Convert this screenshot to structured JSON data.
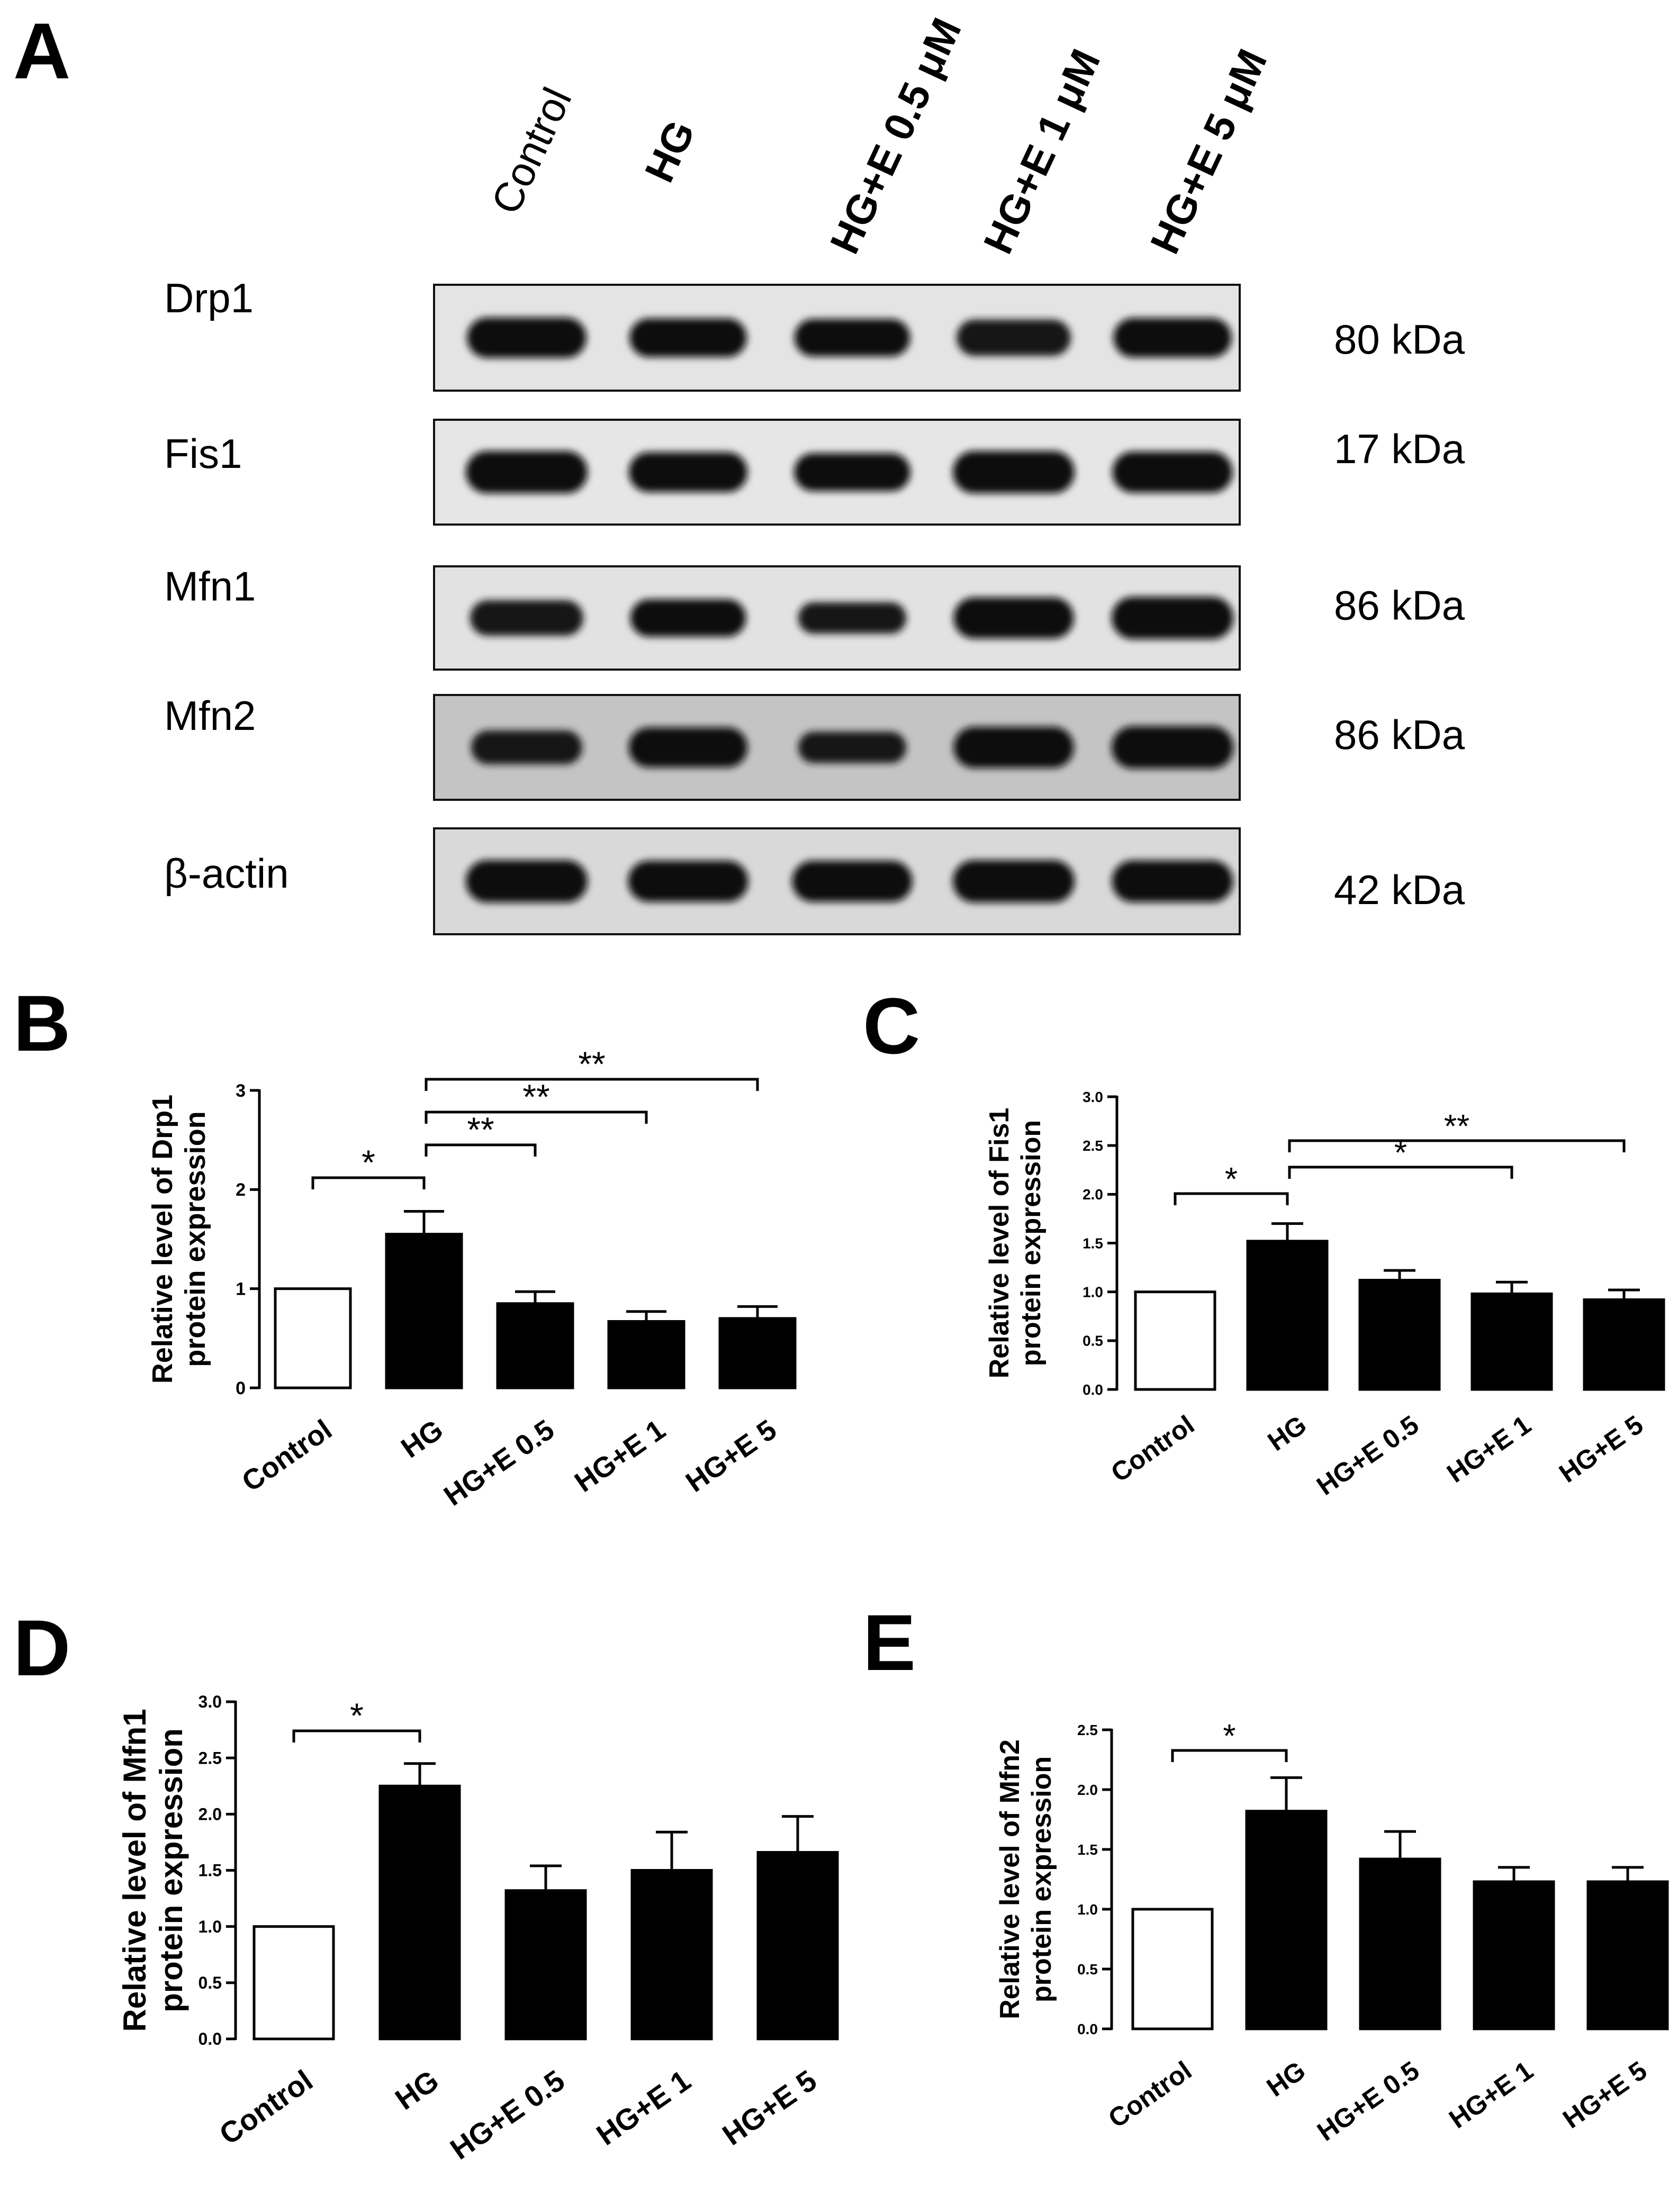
{
  "panel_letters": [
    "A",
    "B",
    "C",
    "D",
    "E"
  ],
  "blot": {
    "lane_labels": [
      "Control",
      "HG",
      "HG+E 0.5 μM",
      "HG+E 1 μM",
      "HG+E 5 μM"
    ],
    "rows": [
      {
        "protein": "Drp1",
        "size": "80 kDa",
        "intensity": [
          0.92,
          0.85,
          0.8,
          0.75,
          0.88
        ],
        "background": "#e4e4e4"
      },
      {
        "protein": "Fis1",
        "size": "17 kDa",
        "intensity": [
          1.0,
          0.9,
          0.82,
          1.0,
          0.95
        ],
        "background": "#e6e6e6"
      },
      {
        "protein": "Mfn1",
        "size": "86 kDa",
        "intensity": [
          0.72,
          0.8,
          0.55,
          0.95,
          1.0
        ],
        "background": "#e2e2e2"
      },
      {
        "protein": "Mfn2",
        "size": "86  kDa",
        "intensity": [
          0.65,
          0.9,
          0.55,
          0.95,
          1.0
        ],
        "background": "#c4c4c4"
      },
      {
        "protein": "β-actin",
        "size": "42 kDa",
        "intensity": [
          1.0,
          0.95,
          0.95,
          1.0,
          0.98
        ],
        "background": "#d9d9d9"
      }
    ]
  },
  "chart_data": [
    {
      "panel": "B",
      "type": "bar",
      "categories": [
        "Control",
        "HG",
        "HG+E 0.5",
        "HG+E 1",
        "HG+E 5"
      ],
      "values": [
        1.0,
        1.55,
        0.85,
        0.67,
        0.7
      ],
      "errors": [
        0,
        0.23,
        0.12,
        0.1,
        0.12
      ],
      "bar_colors": [
        "#ffffff",
        "#000000",
        "#000000",
        "#000000",
        "#000000"
      ],
      "ylabel": "Relative level of Drp1 protein expression",
      "ylim": [
        0,
        3
      ],
      "yticks": [
        "0",
        "1",
        "2",
        "3"
      ],
      "significance": [
        {
          "from": 0,
          "to": 1,
          "label": "*"
        },
        {
          "from": 1,
          "to": 2,
          "label": "**"
        },
        {
          "from": 1,
          "to": 3,
          "label": "**"
        },
        {
          "from": 1,
          "to": 4,
          "label": "**"
        }
      ]
    },
    {
      "panel": "C",
      "type": "bar",
      "categories": [
        "Control",
        "HG",
        "HG+E 0.5",
        "HG+E 1",
        "HG+E 5"
      ],
      "values": [
        1.0,
        1.52,
        1.12,
        0.98,
        0.92
      ],
      "errors": [
        0,
        0.18,
        0.1,
        0.12,
        0.1
      ],
      "bar_colors": [
        "#ffffff",
        "#000000",
        "#000000",
        "#000000",
        "#000000"
      ],
      "ylabel": "Relative level of Fis1 protein expression",
      "ylim": [
        0,
        3
      ],
      "yticks": [
        "0.0",
        "0.5",
        "1.0",
        "1.5",
        "2.0",
        "2.5",
        "3.0"
      ],
      "significance": [
        {
          "from": 0,
          "to": 1,
          "label": "*"
        },
        {
          "from": 1,
          "to": 3,
          "label": "*"
        },
        {
          "from": 1,
          "to": 4,
          "label": "**"
        }
      ]
    },
    {
      "panel": "D",
      "type": "bar",
      "categories": [
        "Control",
        "HG",
        "HG+E 0.5",
        "HG+E 1",
        "HG+E 5"
      ],
      "values": [
        1.0,
        2.25,
        1.32,
        1.5,
        1.66
      ],
      "errors": [
        0,
        0.2,
        0.22,
        0.34,
        0.32
      ],
      "bar_colors": [
        "#ffffff",
        "#000000",
        "#000000",
        "#000000",
        "#000000"
      ],
      "ylabel": "Relative level of Mfn1 protein expression",
      "ylim": [
        0,
        3
      ],
      "yticks": [
        "0.0",
        "0.5",
        "1.0",
        "1.5",
        "2.0",
        "2.5",
        "3.0"
      ],
      "significance": [
        {
          "from": 0,
          "to": 1,
          "label": "*"
        }
      ]
    },
    {
      "panel": "E",
      "type": "bar",
      "categories": [
        "Control",
        "HG",
        "HG+E 0.5",
        "HG+E 1",
        "HG+E 5"
      ],
      "values": [
        1.0,
        1.82,
        1.42,
        1.23,
        1.23
      ],
      "errors": [
        0,
        0.28,
        0.23,
        0.12,
        0.12
      ],
      "bar_colors": [
        "#ffffff",
        "#000000",
        "#000000",
        "#000000",
        "#000000"
      ],
      "ylabel": "Relative level of Mfn2 protein expression",
      "ylim": [
        0,
        2.5
      ],
      "yticks": [
        "0.0",
        "0.5",
        "1.0",
        "1.5",
        "2.0",
        "2.5"
      ],
      "significance": [
        {
          "from": 0,
          "to": 1,
          "label": "*"
        }
      ]
    }
  ]
}
